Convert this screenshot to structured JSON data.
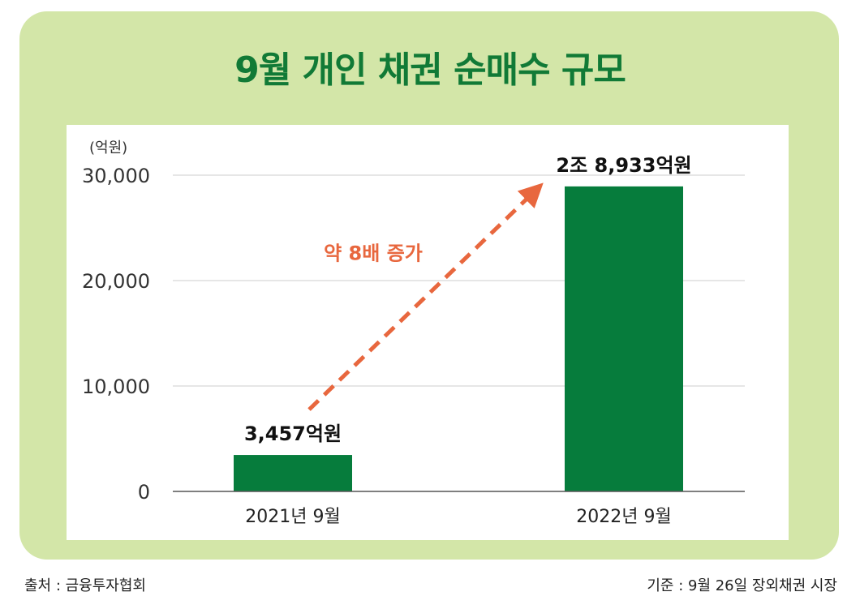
{
  "title": "9월 개인 채권 순매수 규모",
  "chart_data": {
    "type": "bar",
    "title": "9월 개인 채권 순매수 규모",
    "ylabel": "(억원)",
    "ylim": [
      0,
      30000
    ],
    "yticks": [
      {
        "value": 0,
        "label": "0"
      },
      {
        "value": 10000,
        "label": "10,000"
      },
      {
        "value": 20000,
        "label": "20,000"
      },
      {
        "value": 30000,
        "label": "30,000"
      }
    ],
    "grid": true,
    "categories": [
      "2021년 9월",
      "2022년 9월"
    ],
    "values": [
      3457,
      28933
    ],
    "data_labels": [
      "3,457억원",
      "2조 8,933억원"
    ],
    "annotation": {
      "text": "약 8배 증가",
      "color": "#e8673e"
    },
    "bar_color": "#067c3c"
  },
  "footer": {
    "source": "출처 : 금융투자협회",
    "basis": "기준 : 9월 26일 장외채권 시장"
  }
}
